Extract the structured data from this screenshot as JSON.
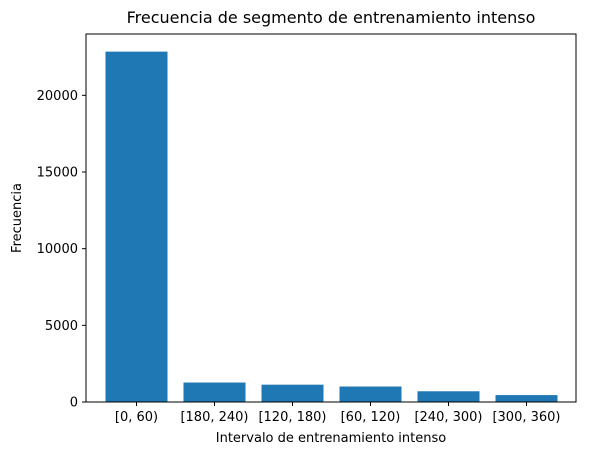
{
  "chart_data": {
    "type": "bar",
    "title": "Frecuencia de segmento de entrenamiento intenso",
    "xlabel": "Intervalo de entrenamiento intenso",
    "ylabel": "Frecuencia",
    "categories": [
      "[0, 60)",
      "[180, 240)",
      "[120, 180)",
      "[60, 120)",
      "[240, 300)",
      "[300, 360)"
    ],
    "values": [
      22850,
      1270,
      1130,
      1010,
      700,
      450
    ],
    "ylim": [
      0,
      24000
    ],
    "yticks": [
      0,
      5000,
      10000,
      15000,
      20000
    ],
    "grid": false,
    "bar_color": "#1f77b4"
  }
}
